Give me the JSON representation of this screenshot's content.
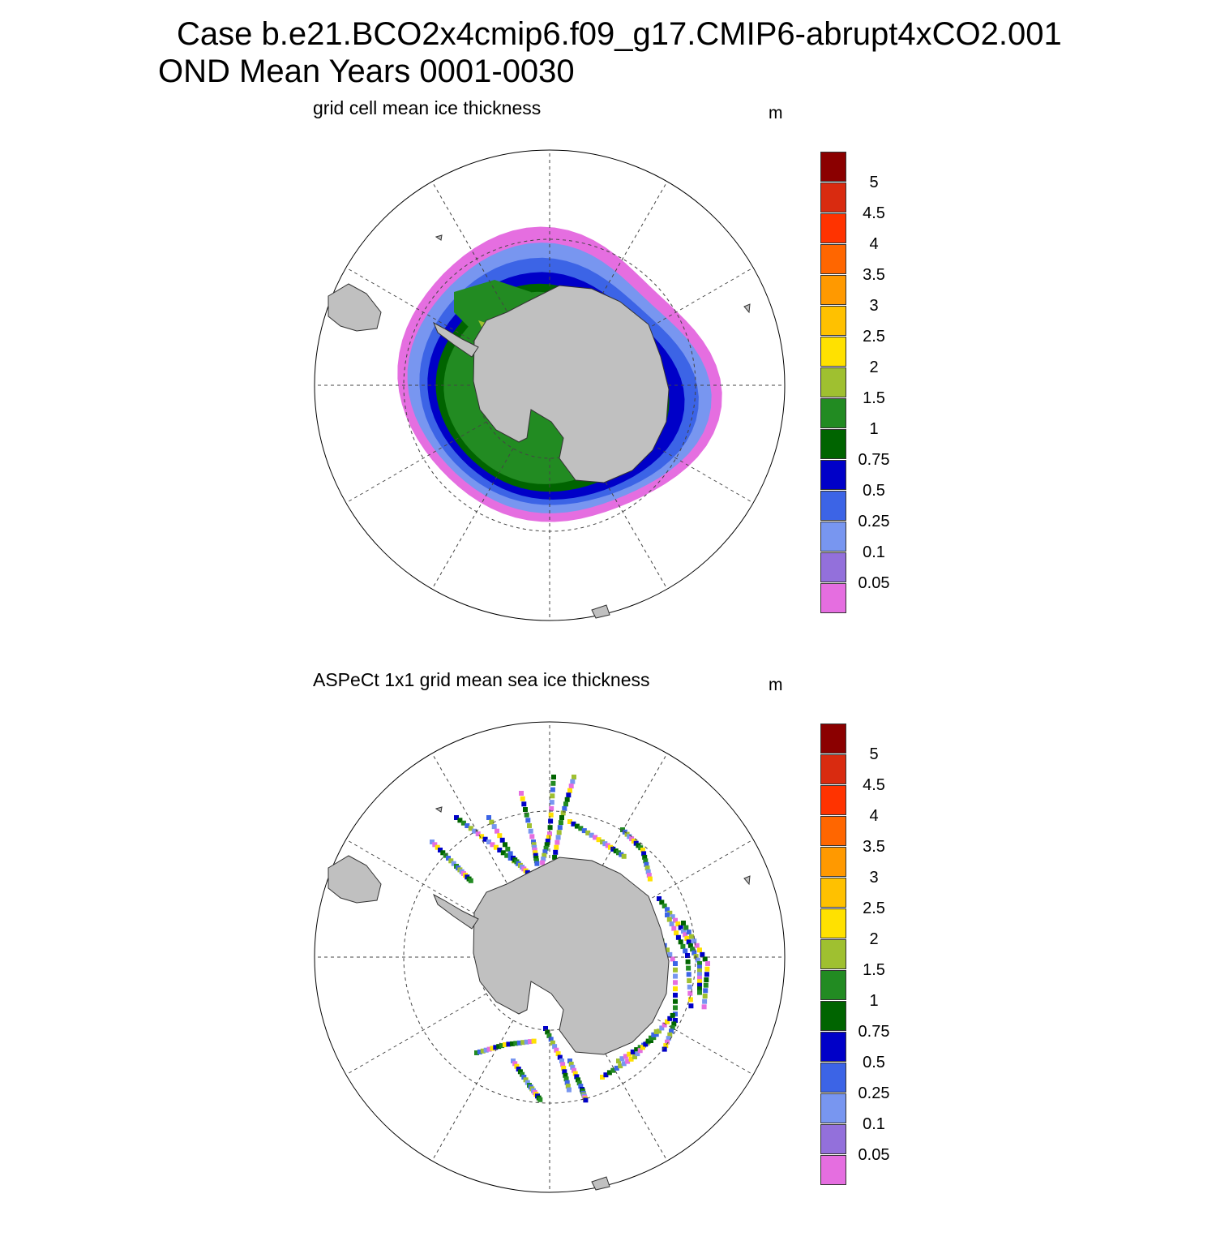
{
  "title": {
    "line1": "Case b.e21.BCO2x4cmip6.f09_g17.CMIP6-abrupt4xCO2.001",
    "line2": "OND Mean   Years 0001-0030"
  },
  "panels": [
    {
      "title": "grid cell mean ice thickness",
      "unit": "m"
    },
    {
      "title": "ASPeCt 1x1 grid mean sea ice thickness",
      "unit": "m"
    }
  ],
  "colorbar": {
    "labels": [
      "5",
      "4.5",
      "4",
      "3.5",
      "3",
      "2.5",
      "2",
      "1.5",
      "1",
      "0.75",
      "0.5",
      "0.25",
      "0.1",
      "0.05"
    ],
    "colors": [
      "#8b0000",
      "#d92b10",
      "#ff3300",
      "#ff6600",
      "#ff9900",
      "#ffc100",
      "#ffe100",
      "#9fc030",
      "#228b22",
      "#006400",
      "#0000c8",
      "#3c64e6",
      "#7896f0",
      "#9370db",
      "#e56ee0"
    ]
  },
  "map": {
    "land_color": "#c0c0c0",
    "projection": "south-polar-stereographic"
  }
}
